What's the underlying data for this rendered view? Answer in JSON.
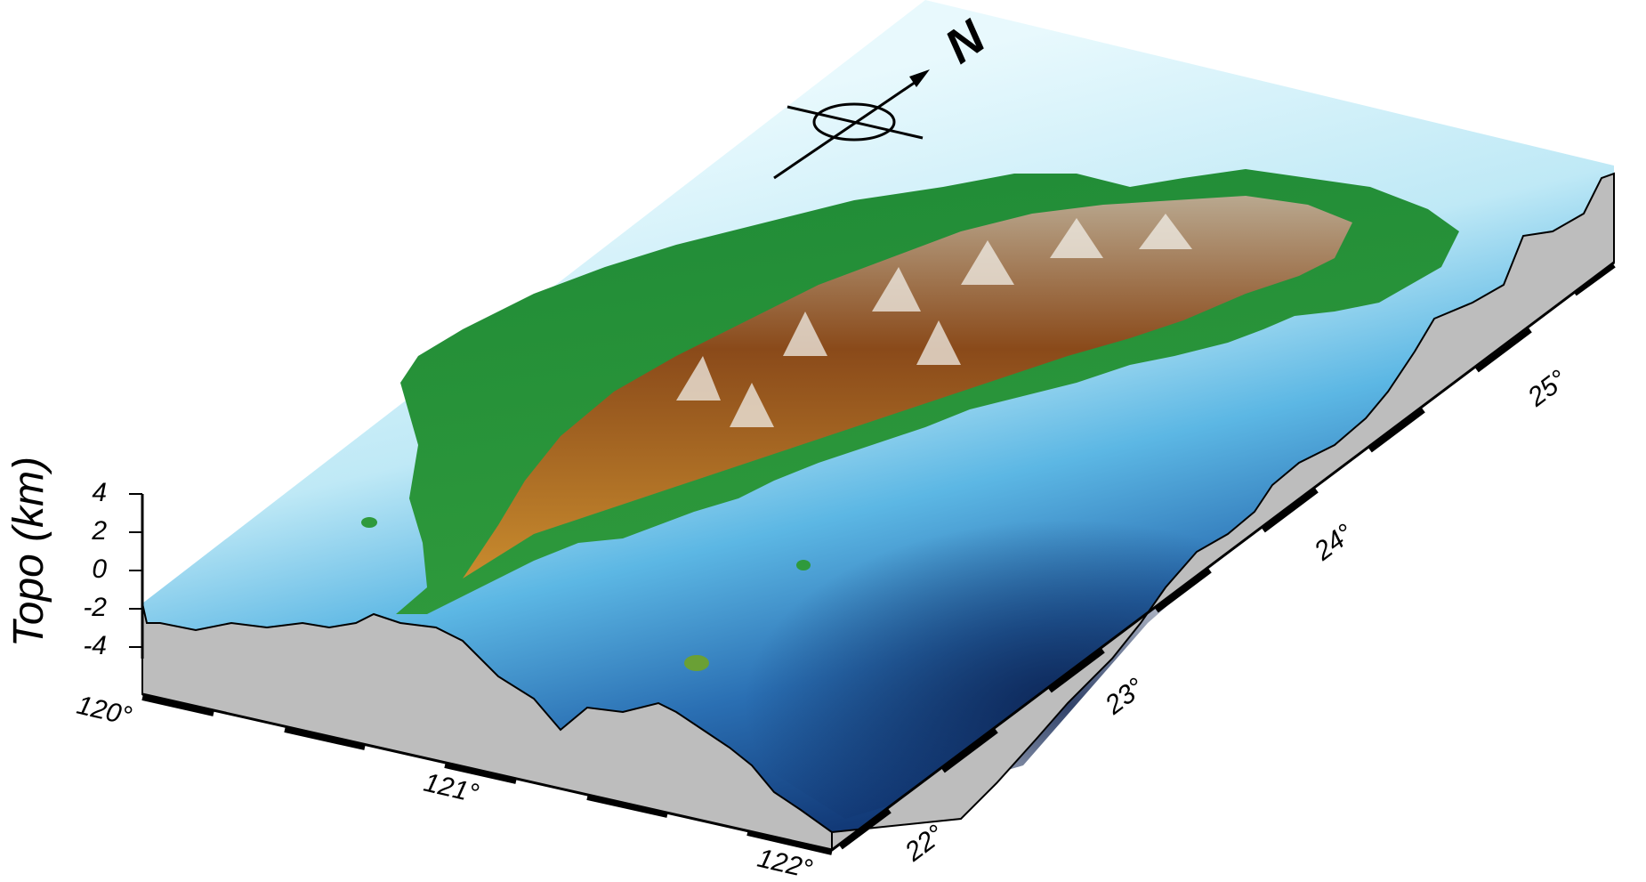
{
  "figure": {
    "compass_label": "N",
    "vertical_axis": {
      "title": "Topo (km)",
      "ticks": [
        "4",
        "2",
        "0",
        "-2",
        "-4"
      ]
    },
    "longitude_axis": {
      "ticks": [
        "120°",
        "121°",
        "122°"
      ]
    },
    "latitude_axis": {
      "ticks": [
        "22°",
        "23°",
        "24°",
        "25°"
      ]
    }
  },
  "colors": {
    "ocean_shallow": "#dff6fb",
    "ocean_mid": "#5fb8e6",
    "ocean_deep": "#0c2f6e",
    "lowland": "#1f8a36",
    "highland": "#8a4a1a",
    "peak": "#f2efe8",
    "side_wall": "#bdbdbd"
  }
}
